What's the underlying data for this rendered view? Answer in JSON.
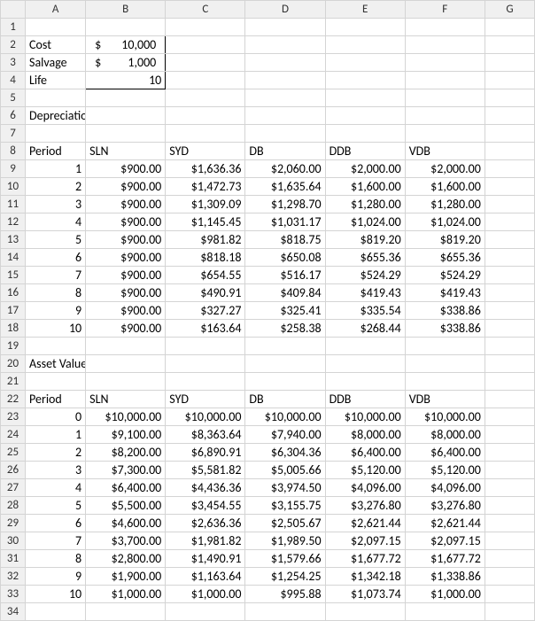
{
  "columns": [
    "A",
    "B",
    "C",
    "D",
    "E",
    "F",
    "G"
  ],
  "rowCount": 34,
  "inputs": {
    "cost_label": "Cost",
    "salvage_label": "Salvage",
    "life_label": "Life",
    "cost_value": "10,000",
    "salvage_value": "1,000",
    "life_value": "10",
    "currency_symbol": "$"
  },
  "section1": {
    "title": "Depreciation Value"
  },
  "section2": {
    "title": "Asset Value"
  },
  "headers": {
    "period": "Period",
    "sln": "SLN",
    "syd": "SYD",
    "db": "DB",
    "ddb": "DDB",
    "vdb": "VDB"
  },
  "dep": {
    "periods": [
      "1",
      "2",
      "3",
      "4",
      "5",
      "6",
      "7",
      "8",
      "9",
      "10"
    ],
    "sln": [
      "$900.00",
      "$900.00",
      "$900.00",
      "$900.00",
      "$900.00",
      "$900.00",
      "$900.00",
      "$900.00",
      "$900.00",
      "$900.00"
    ],
    "syd": [
      "$1,636.36",
      "$1,472.73",
      "$1,309.09",
      "$1,145.45",
      "$981.82",
      "$818.18",
      "$654.55",
      "$490.91",
      "$327.27",
      "$163.64"
    ],
    "db": [
      "$2,060.00",
      "$1,635.64",
      "$1,298.70",
      "$1,031.17",
      "$818.75",
      "$650.08",
      "$516.17",
      "$409.84",
      "$325.41",
      "$258.38"
    ],
    "ddb": [
      "$2,000.00",
      "$1,600.00",
      "$1,280.00",
      "$1,024.00",
      "$819.20",
      "$655.36",
      "$524.29",
      "$419.43",
      "$335.54",
      "$268.44"
    ],
    "vdb": [
      "$2,000.00",
      "$1,600.00",
      "$1,280.00",
      "$1,024.00",
      "$819.20",
      "$655.36",
      "$524.29",
      "$419.43",
      "$338.86",
      "$338.86"
    ]
  },
  "asset": {
    "periods": [
      "0",
      "1",
      "2",
      "3",
      "4",
      "5",
      "6",
      "7",
      "8",
      "9",
      "10"
    ],
    "sln": [
      "$10,000.00",
      "$9,100.00",
      "$8,200.00",
      "$7,300.00",
      "$6,400.00",
      "$5,500.00",
      "$4,600.00",
      "$3,700.00",
      "$2,800.00",
      "$1,900.00",
      "$1,000.00"
    ],
    "syd": [
      "$10,000.00",
      "$8,363.64",
      "$6,890.91",
      "$5,581.82",
      "$4,436.36",
      "$3,454.55",
      "$2,636.36",
      "$1,981.82",
      "$1,490.91",
      "$1,163.64",
      "$1,000.00"
    ],
    "db": [
      "$10,000.00",
      "$7,940.00",
      "$6,304.36",
      "$5,005.66",
      "$3,974.50",
      "$3,155.75",
      "$2,505.67",
      "$1,989.50",
      "$1,579.66",
      "$1,254.25",
      "$995.88"
    ],
    "ddb": [
      "$10,000.00",
      "$8,000.00",
      "$6,400.00",
      "$5,120.00",
      "$4,096.00",
      "$3,276.80",
      "$2,621.44",
      "$2,097.15",
      "$1,677.72",
      "$1,342.18",
      "$1,073.74"
    ],
    "vdb": [
      "$10,000.00",
      "$8,000.00",
      "$6,400.00",
      "$5,120.00",
      "$4,096.00",
      "$3,276.80",
      "$2,621.44",
      "$2,097.15",
      "$1,677.72",
      "$1,338.86",
      "$1,000.00"
    ]
  },
  "colors": {
    "grid": "#d4d4d4",
    "header_bg": "#f0f0f0",
    "text": "#000000",
    "bg": "#ffffff"
  }
}
